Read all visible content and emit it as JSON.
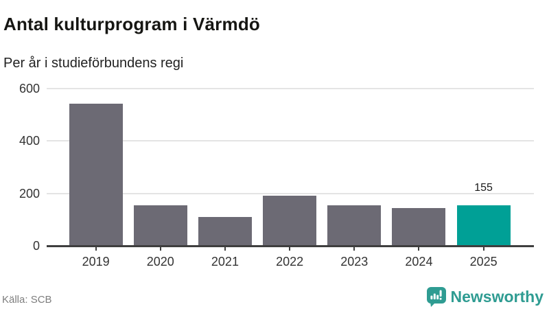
{
  "header": {
    "title": "Antal kulturprogram i Värmdö",
    "subtitle": "Per år i studieförbundens regi"
  },
  "chart_data": {
    "type": "bar",
    "title": "Antal kulturprogram i Värmdö",
    "subtitle": "Per år i studieförbundens regi",
    "categories": [
      "2019",
      "2020",
      "2021",
      "2022",
      "2023",
      "2024",
      "2025"
    ],
    "values": [
      540,
      155,
      110,
      190,
      155,
      145,
      155
    ],
    "xlabel": "",
    "ylabel": "",
    "ylim": [
      0,
      600
    ],
    "yticks": [
      0,
      200,
      400,
      600
    ],
    "grid": "horizontal",
    "legend": "none",
    "bar_color": "#6c6a74",
    "highlight_color": "#00a096",
    "highlight_index": 6,
    "data_label": {
      "index": 6,
      "text": "155"
    }
  },
  "footer": {
    "source": "Källa: SCB",
    "brand": "Newsworthy",
    "brand_color": "#2f9c92",
    "logo_icon": "bar-chart-exclamation-speech-bubble-icon"
  },
  "colors": {
    "axis_line": "#3e3e3e",
    "grid_line": "#e4e4e4",
    "tick_label": "#333333",
    "source_text": "#7d7d7d"
  }
}
